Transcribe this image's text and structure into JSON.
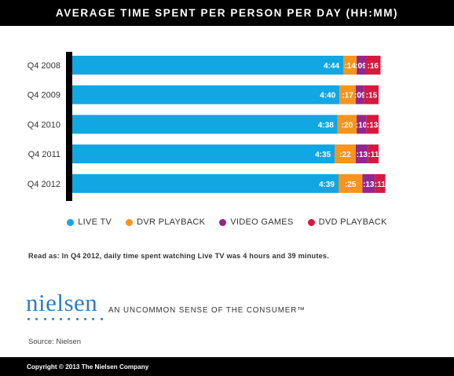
{
  "title": "AVERAGE TIME SPENT PER PERSON PER DAY (HH:MM)",
  "chart_data": {
    "type": "bar",
    "orientation": "horizontal",
    "stacked": true,
    "categories": [
      "Q4 2008",
      "Q4 2009",
      "Q4 2010",
      "Q4 2011",
      "Q4 2012"
    ],
    "series": [
      {
        "name": "LIVE TV",
        "color": "#12a6e2",
        "values": [
          284,
          280,
          278,
          275,
          279
        ],
        "labels": [
          "4:44",
          "4:40",
          "4:38",
          "4:35",
          "4:39"
        ]
      },
      {
        "name": "DVR PLAYBACK",
        "color": "#f7941d",
        "values": [
          14,
          17,
          20,
          22,
          25
        ],
        "labels": [
          ":14",
          ":17",
          ":20",
          ":22",
          ":25"
        ]
      },
      {
        "name": "VIDEO GAMES",
        "color": "#92278f",
        "values": [
          9,
          9,
          10,
          13,
          13
        ],
        "labels": [
          ":09",
          ":09",
          ":10",
          ":13",
          ":13"
        ]
      },
      {
        "name": "DVD PLAYBACK",
        "color": "#d6193e",
        "values": [
          16,
          15,
          13,
          11,
          11
        ],
        "labels": [
          ":16",
          ":15",
          ":13",
          ":11",
          ":11"
        ]
      }
    ],
    "legend": "bottom-center",
    "grid": false
  },
  "legend_items": [
    {
      "label": "LIVE TV",
      "color": "#12a6e2"
    },
    {
      "label": "DVR PLAYBACK",
      "color": "#f7941d"
    },
    {
      "label": "VIDEO GAMES",
      "color": "#92278f"
    },
    {
      "label": "DVD PLAYBACK",
      "color": "#d6193e"
    }
  ],
  "footnote": "Read as: In Q4 2012, daily time spent watching Live TV was 4 hours and 39 minutes.",
  "logo": {
    "text": "nielsen",
    "color": "#2a7ec6"
  },
  "tagline": "AN UNCOMMON SENSE OF THE CONSUMER™",
  "source": "Source: Nielsen",
  "copyright": "Copyright © 2013 The Nielsen Company"
}
